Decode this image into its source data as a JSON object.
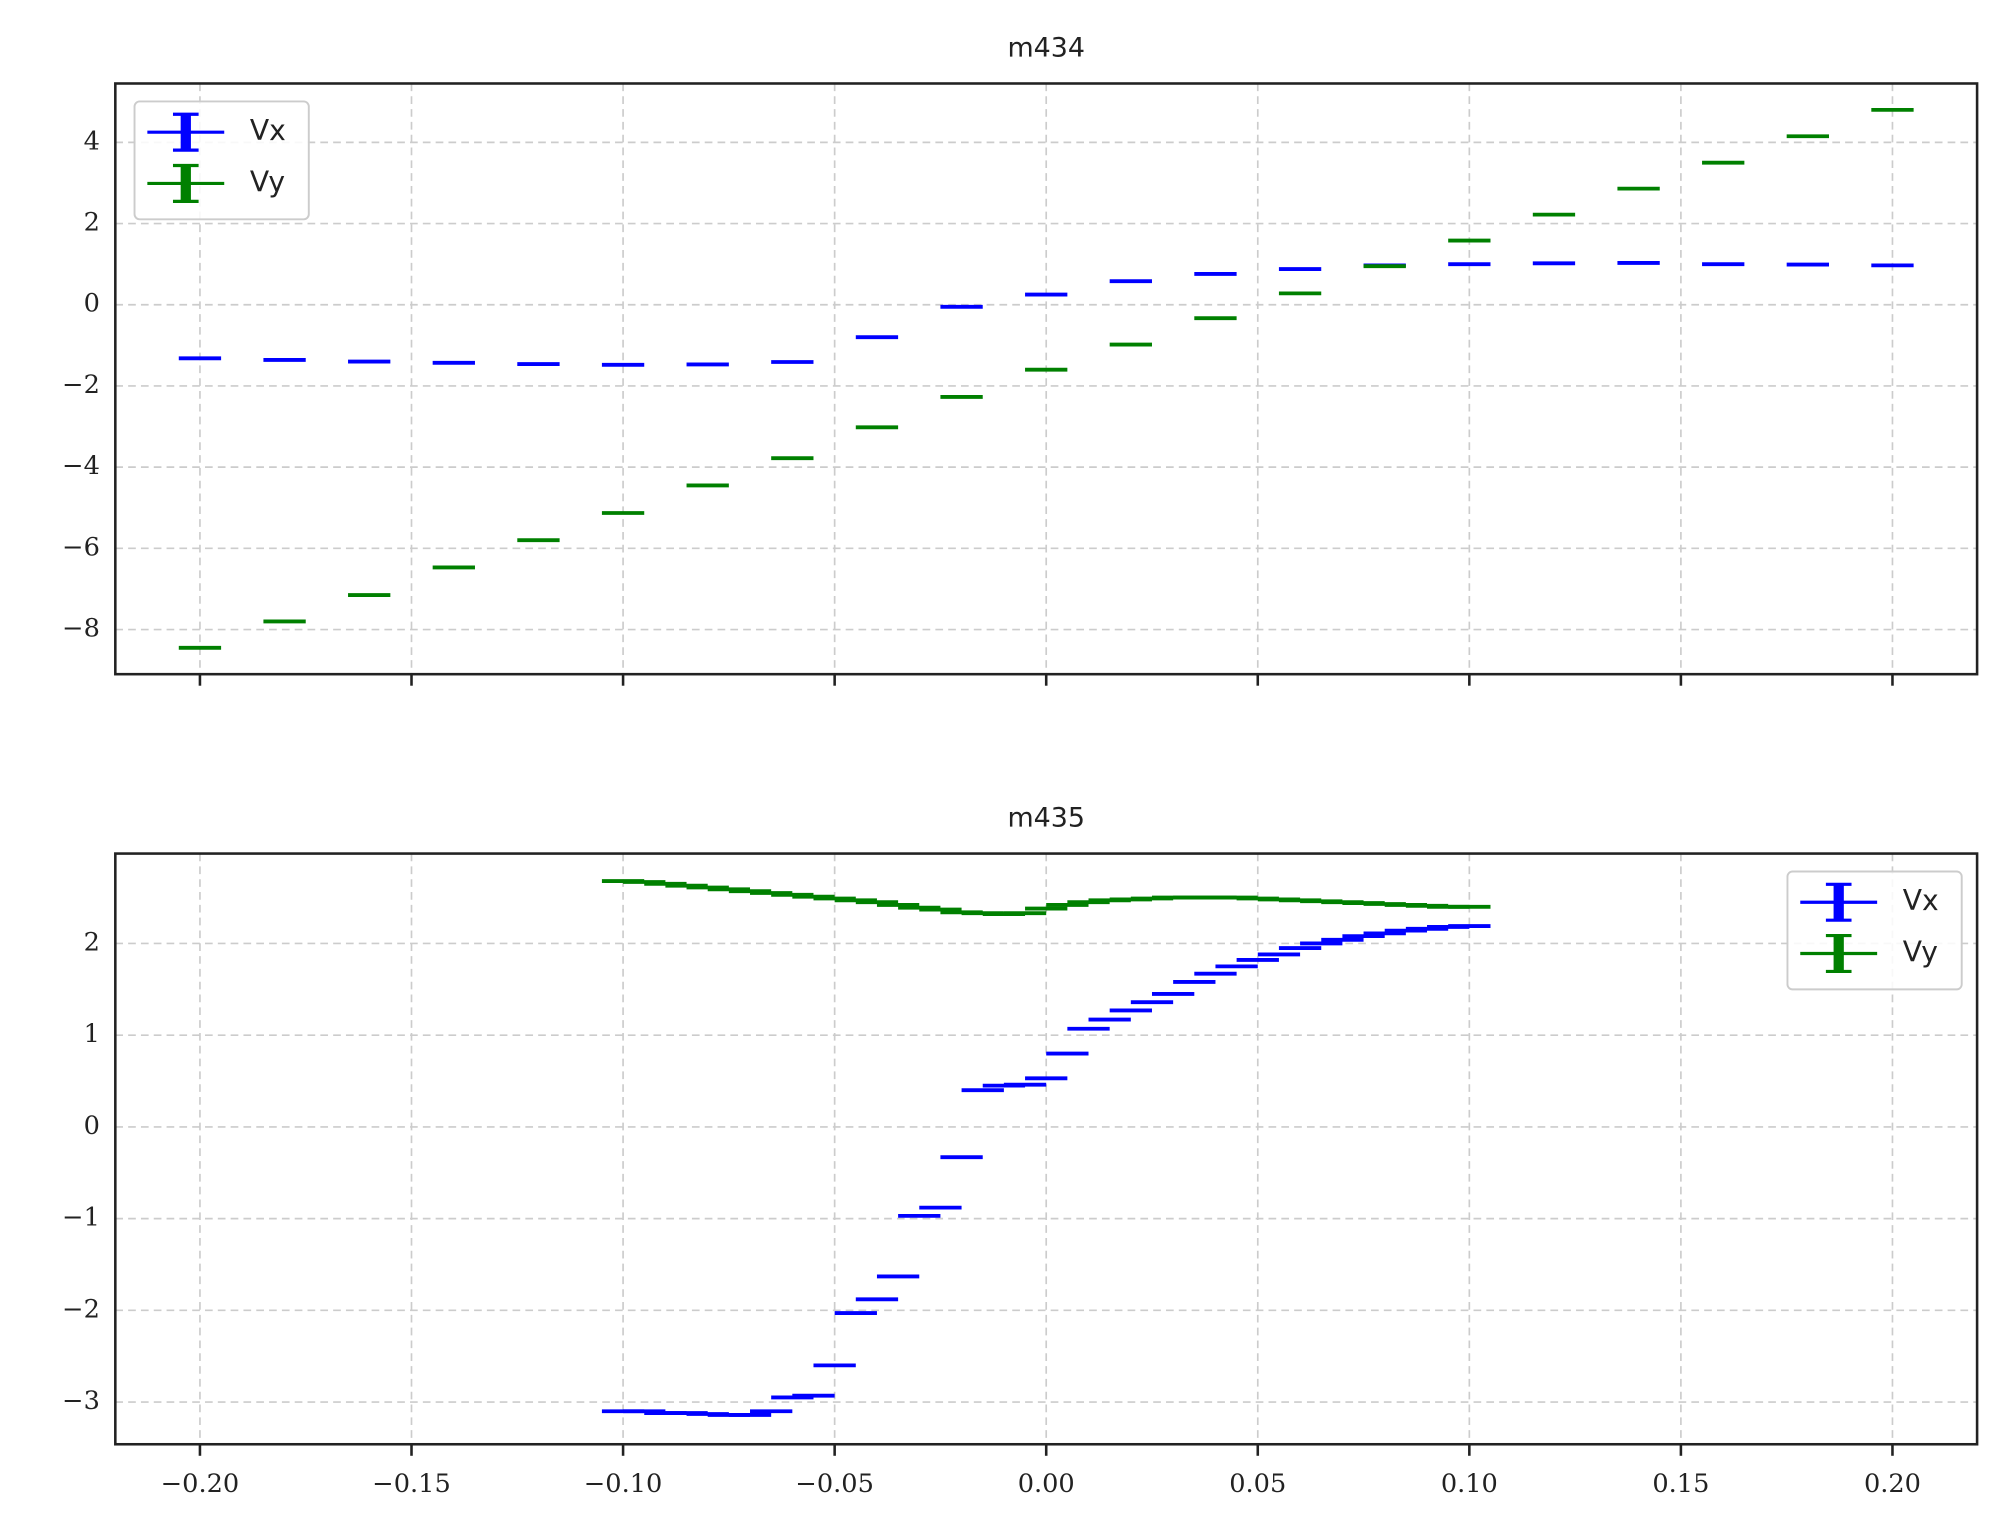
{
  "chart_data": [
    {
      "type": "errorbar",
      "title": "m434",
      "grid": true,
      "legend": "upper left",
      "xlim": [
        -0.22,
        0.22
      ],
      "ylim": [
        -9.1,
        5.45
      ],
      "xticks": [
        -0.2,
        -0.15,
        -0.1,
        -0.05,
        0,
        0.05,
        0.1,
        0.15,
        0.2
      ],
      "yticks": [
        {
          "value": -8,
          "label": "−8"
        },
        {
          "value": -6,
          "label": "−6"
        },
        {
          "value": -4,
          "label": "−4"
        },
        {
          "value": -2,
          "label": "−2"
        },
        0,
        2,
        4
      ],
      "x": [
        -0.2,
        -0.18,
        -0.16,
        -0.14,
        -0.12,
        -0.1,
        -0.08,
        -0.06,
        -0.04,
        -0.02,
        0,
        0.02,
        0.04,
        0.06,
        0.08,
        0.1,
        0.12,
        0.14,
        0.16,
        0.18,
        0.2
      ],
      "xerr": 0.005,
      "series": [
        {
          "name": "Vx",
          "color": "#0000ff",
          "values": [
            -1.32,
            -1.36,
            -1.4,
            -1.43,
            -1.46,
            -1.48,
            -1.47,
            -1.41,
            -0.8,
            -0.05,
            0.25,
            0.58,
            0.76,
            0.88,
            0.97,
            1.0,
            1.02,
            1.03,
            1.0,
            0.99,
            0.97
          ]
        },
        {
          "name": "Vy",
          "color": "#008000",
          "values": [
            -8.45,
            -7.8,
            -7.15,
            -6.47,
            -5.8,
            -5.13,
            -4.45,
            -3.78,
            -3.02,
            -2.27,
            -1.6,
            -0.98,
            -0.33,
            0.28,
            0.95,
            1.58,
            2.22,
            2.86,
            3.5,
            4.15,
            4.8
          ]
        }
      ]
    },
    {
      "type": "errorbar",
      "title": "m435",
      "grid": true,
      "legend": "upper right",
      "xlim": [
        -0.22,
        0.22
      ],
      "ylim": [
        -3.46,
        2.98
      ],
      "xticks": [
        {
          "value": -0.2,
          "label": "−0.20"
        },
        {
          "value": -0.15,
          "label": "−0.15"
        },
        {
          "value": -0.1,
          "label": "−0.10"
        },
        {
          "value": -0.05,
          "label": "−0.05"
        },
        {
          "value": 0,
          "label": "0.00"
        },
        {
          "value": 0.05,
          "label": "0.05"
        },
        {
          "value": 0.1,
          "label": "0.10"
        },
        {
          "value": 0.15,
          "label": "0.15"
        },
        {
          "value": 0.2,
          "label": "0.20"
        }
      ],
      "yticks": [
        {
          "value": -3,
          "label": "−3"
        },
        {
          "value": -2,
          "label": "−2"
        },
        {
          "value": -1,
          "label": "−1"
        },
        0,
        1,
        2
      ],
      "x": [
        -0.1,
        -0.095,
        -0.09,
        -0.085,
        -0.08,
        -0.075,
        -0.07,
        -0.065,
        -0.06,
        -0.055,
        -0.05,
        -0.045,
        -0.04,
        -0.035,
        -0.03,
        -0.025,
        -0.02,
        -0.015,
        -0.01,
        -0.005,
        0,
        0.005,
        0.01,
        0.015,
        0.02,
        0.025,
        0.03,
        0.035,
        0.04,
        0.045,
        0.05,
        0.055,
        0.06,
        0.065,
        0.07,
        0.075,
        0.08,
        0.085,
        0.09,
        0.095,
        0.1
      ],
      "xerr": 0.005,
      "series": [
        {
          "name": "Vx",
          "color": "#0000ff",
          "values": [
            -3.1,
            -3.1,
            -3.12,
            -3.12,
            -3.13,
            -3.14,
            -3.14,
            -3.1,
            -2.95,
            -2.93,
            -2.6,
            -2.03,
            -1.88,
            -1.63,
            -0.97,
            -0.88,
            -0.33,
            0.4,
            0.45,
            0.46,
            0.53,
            0.8,
            1.07,
            1.17,
            1.27,
            1.36,
            1.45,
            1.58,
            1.67,
            1.75,
            1.82,
            1.88,
            1.95,
            2.0,
            2.04,
            2.08,
            2.11,
            2.14,
            2.16,
            2.18,
            2.19
          ]
        },
        {
          "name": "Vy",
          "color": "#008000",
          "values": [
            2.68,
            2.67,
            2.65,
            2.63,
            2.61,
            2.59,
            2.57,
            2.55,
            2.53,
            2.51,
            2.49,
            2.47,
            2.45,
            2.42,
            2.39,
            2.37,
            2.34,
            2.33,
            2.32,
            2.33,
            2.38,
            2.42,
            2.45,
            2.47,
            2.48,
            2.49,
            2.5,
            2.5,
            2.5,
            2.5,
            2.49,
            2.48,
            2.47,
            2.46,
            2.45,
            2.44,
            2.43,
            2.42,
            2.41,
            2.4,
            2.4
          ]
        }
      ]
    }
  ]
}
